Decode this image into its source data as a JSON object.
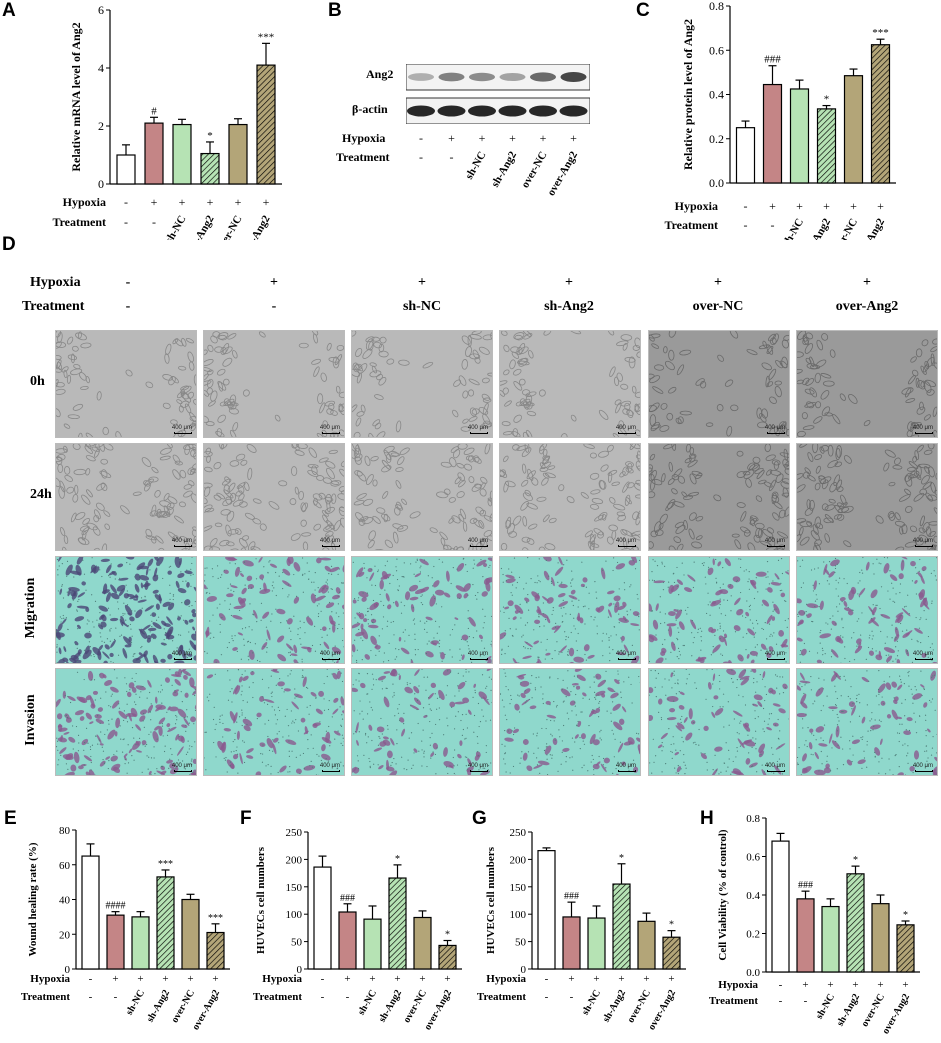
{
  "panels": {
    "A": "A",
    "B": "B",
    "C": "C",
    "D": "D",
    "E": "E",
    "F": "F",
    "G": "G",
    "H": "H"
  },
  "conditions": {
    "hypoxia_label": "Hypoxia",
    "treatment_label": "Treatment",
    "hypoxia": [
      "-",
      "+",
      "+",
      "+",
      "+",
      "+"
    ],
    "treatment": [
      "-",
      "-",
      "sh-NC",
      "sh-Ang2",
      "over-NC",
      "over-Ang2"
    ]
  },
  "colors": {
    "control": "#ffffff",
    "hypoxia": "#c48586",
    "sh_nc": "#b6e3b4",
    "sh_ang2": "#b6e3b4",
    "over_nc": "#b3a578",
    "over_ang2": "#b3a578",
    "hatched": [
      false,
      false,
      false,
      true,
      false,
      true
    ]
  },
  "western_blot": {
    "bands": [
      "Ang2",
      "β-actin"
    ],
    "ang2_intensity": [
      0.35,
      0.55,
      0.5,
      0.4,
      0.65,
      0.8
    ],
    "actin_intensity": [
      0.9,
      0.9,
      0.9,
      0.9,
      0.9,
      0.9
    ]
  },
  "microscopy": {
    "rows": [
      "0h",
      "24h",
      "Migration",
      "Invasion"
    ],
    "scale_bar": "400 μm"
  },
  "chart_data": [
    {
      "id": "A",
      "type": "bar",
      "ylabel": "Relative mRNA level of Ang2",
      "ylim": [
        0,
        6
      ],
      "yticks": [
        0,
        2,
        4,
        6
      ],
      "values": [
        1.0,
        2.1,
        2.05,
        1.05,
        2.05,
        4.1
      ],
      "errors": [
        0.35,
        0.2,
        0.18,
        0.4,
        0.2,
        0.75
      ],
      "annotations": [
        "",
        "#",
        "",
        "*",
        "",
        "***"
      ]
    },
    {
      "id": "C",
      "type": "bar",
      "ylabel": "Relative protein level of Ang2",
      "ylim": [
        0,
        0.8
      ],
      "yticks": [
        0.0,
        0.2,
        0.4,
        0.6,
        0.8
      ],
      "values": [
        0.25,
        0.445,
        0.425,
        0.335,
        0.485,
        0.625
      ],
      "errors": [
        0.03,
        0.085,
        0.04,
        0.015,
        0.03,
        0.025
      ],
      "annotations": [
        "",
        "###",
        "",
        "*",
        "",
        "***"
      ]
    },
    {
      "id": "E",
      "type": "bar",
      "ylabel": "Wound healing rate (%)",
      "ylim": [
        0,
        80
      ],
      "yticks": [
        0,
        20,
        40,
        60,
        80
      ],
      "values": [
        65,
        31,
        30,
        53,
        40,
        21
      ],
      "errors": [
        7,
        2,
        3,
        4,
        3,
        5
      ],
      "annotations": [
        "",
        "####",
        "",
        "***",
        "",
        "***"
      ]
    },
    {
      "id": "F",
      "type": "bar",
      "ylabel": "HUVECs cell numbers",
      "ylim": [
        0,
        250
      ],
      "yticks": [
        0,
        50,
        100,
        150,
        200,
        250
      ],
      "values": [
        186,
        104,
        91,
        166,
        94,
        43
      ],
      "errors": [
        20,
        15,
        24,
        24,
        12,
        9
      ],
      "annotations": [
        "",
        "###",
        "",
        "*",
        "",
        "*"
      ]
    },
    {
      "id": "G",
      "type": "bar",
      "ylabel": "HUVECs cell numbers",
      "ylim": [
        0,
        250
      ],
      "yticks": [
        0,
        50,
        100,
        150,
        200,
        250
      ],
      "values": [
        216,
        95,
        93,
        155,
        87,
        58
      ],
      "errors": [
        5,
        27,
        22,
        37,
        15,
        12
      ],
      "annotations": [
        "",
        "###",
        "",
        "*",
        "",
        "*"
      ]
    },
    {
      "id": "H",
      "type": "bar",
      "ylabel": "Cell Viability (% of control)",
      "ylim": [
        0,
        0.8
      ],
      "yticks": [
        0.0,
        0.2,
        0.4,
        0.6,
        0.8
      ],
      "values": [
        0.68,
        0.38,
        0.34,
        0.51,
        0.355,
        0.245
      ],
      "errors": [
        0.04,
        0.04,
        0.04,
        0.04,
        0.045,
        0.02
      ],
      "annotations": [
        "",
        "###",
        "",
        "*",
        "",
        "*"
      ]
    }
  ]
}
